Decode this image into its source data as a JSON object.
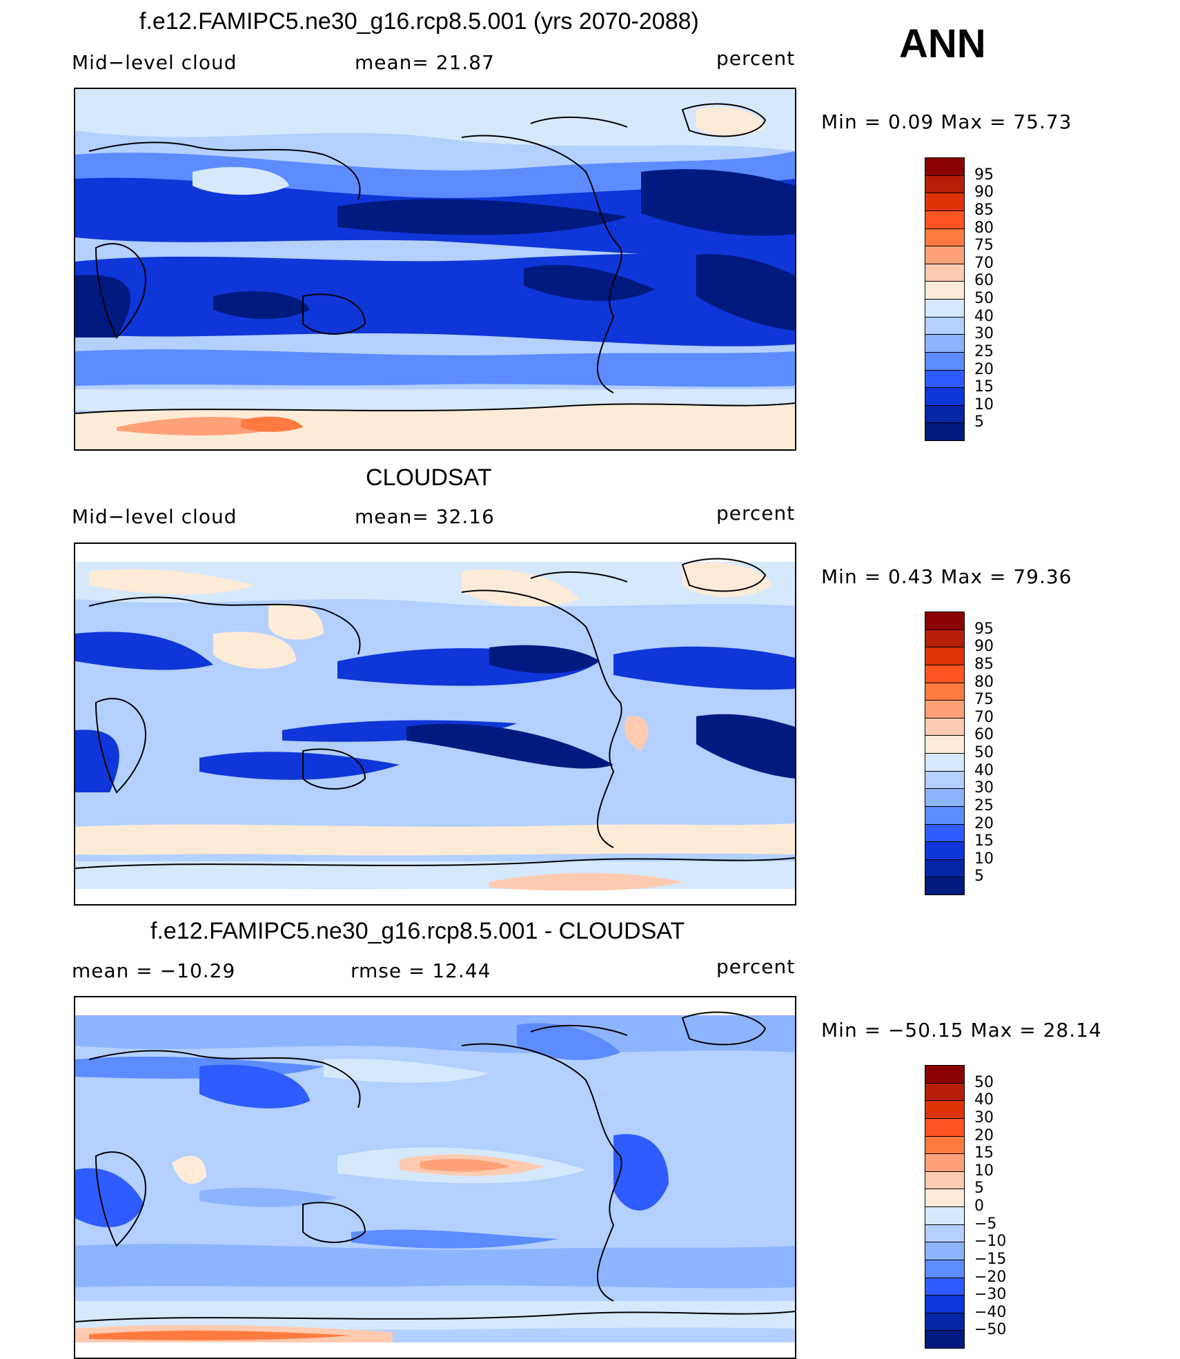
{
  "season": "ANN",
  "panels": [
    {
      "title": "f.e12.FAMIPC5.ne30_g16.rcp8.5.001 (yrs 2070-2088)",
      "left_label": "Mid−level cloud",
      "mid_label": "mean=   21.87",
      "right_label": "percent",
      "minmax": "Min  =     0.09  Max  =    75.73",
      "levels": [
        "95",
        "90",
        "85",
        "80",
        "75",
        "70",
        "60",
        "50",
        "40",
        "30",
        "25",
        "20",
        "15",
        "10",
        "5"
      ],
      "colors": [
        "#8b0000",
        "#b51e07",
        "#de3209",
        "#ff5422",
        "#ff7a40",
        "#ffa178",
        "#ffcbb0",
        "#fdebd8",
        "#d6e8fb",
        "#b3d0ff",
        "#8cb4ff",
        "#5c8cff",
        "#2f5cff",
        "#0f36d8",
        "#0626a8",
        "#001a80"
      ]
    },
    {
      "title": "CLOUDSAT",
      "left_label": "Mid−level cloud",
      "mid_label": "mean=   32.16",
      "right_label": "percent",
      "minmax": "Min  =     0.43  Max  =    79.36",
      "levels": [
        "95",
        "90",
        "85",
        "80",
        "75",
        "70",
        "60",
        "50",
        "40",
        "30",
        "25",
        "20",
        "15",
        "10",
        "5"
      ],
      "colors": [
        "#8b0000",
        "#b51e07",
        "#de3209",
        "#ff5422",
        "#ff7a40",
        "#ffa178",
        "#ffcbb0",
        "#fdebd8",
        "#d6e8fb",
        "#b3d0ff",
        "#8cb4ff",
        "#5c8cff",
        "#2f5cff",
        "#0f36d8",
        "#0626a8",
        "#001a80"
      ]
    },
    {
      "title": "f.e12.FAMIPC5.ne30_g16.rcp8.5.001 - CLOUDSAT",
      "left_label": "mean  =  −10.29",
      "mid_label": "rmse  =     12.44",
      "right_label": "percent",
      "minmax": "Min  =  −50.15  Max  =    28.14",
      "levels": [
        "50",
        "40",
        "30",
        "20",
        "15",
        "10",
        "5",
        "0",
        "−5",
        "−10",
        "−15",
        "−20",
        "−30",
        "−40",
        "−50"
      ],
      "colors": [
        "#8b0000",
        "#b51e07",
        "#de3209",
        "#ff5422",
        "#ff7a40",
        "#ffa178",
        "#ffcbb0",
        "#fdebd8",
        "#d6e8fb",
        "#b3d0ff",
        "#8cb4ff",
        "#5c8cff",
        "#2f5cff",
        "#0f36d8",
        "#0626a8",
        "#001a80"
      ]
    }
  ]
}
